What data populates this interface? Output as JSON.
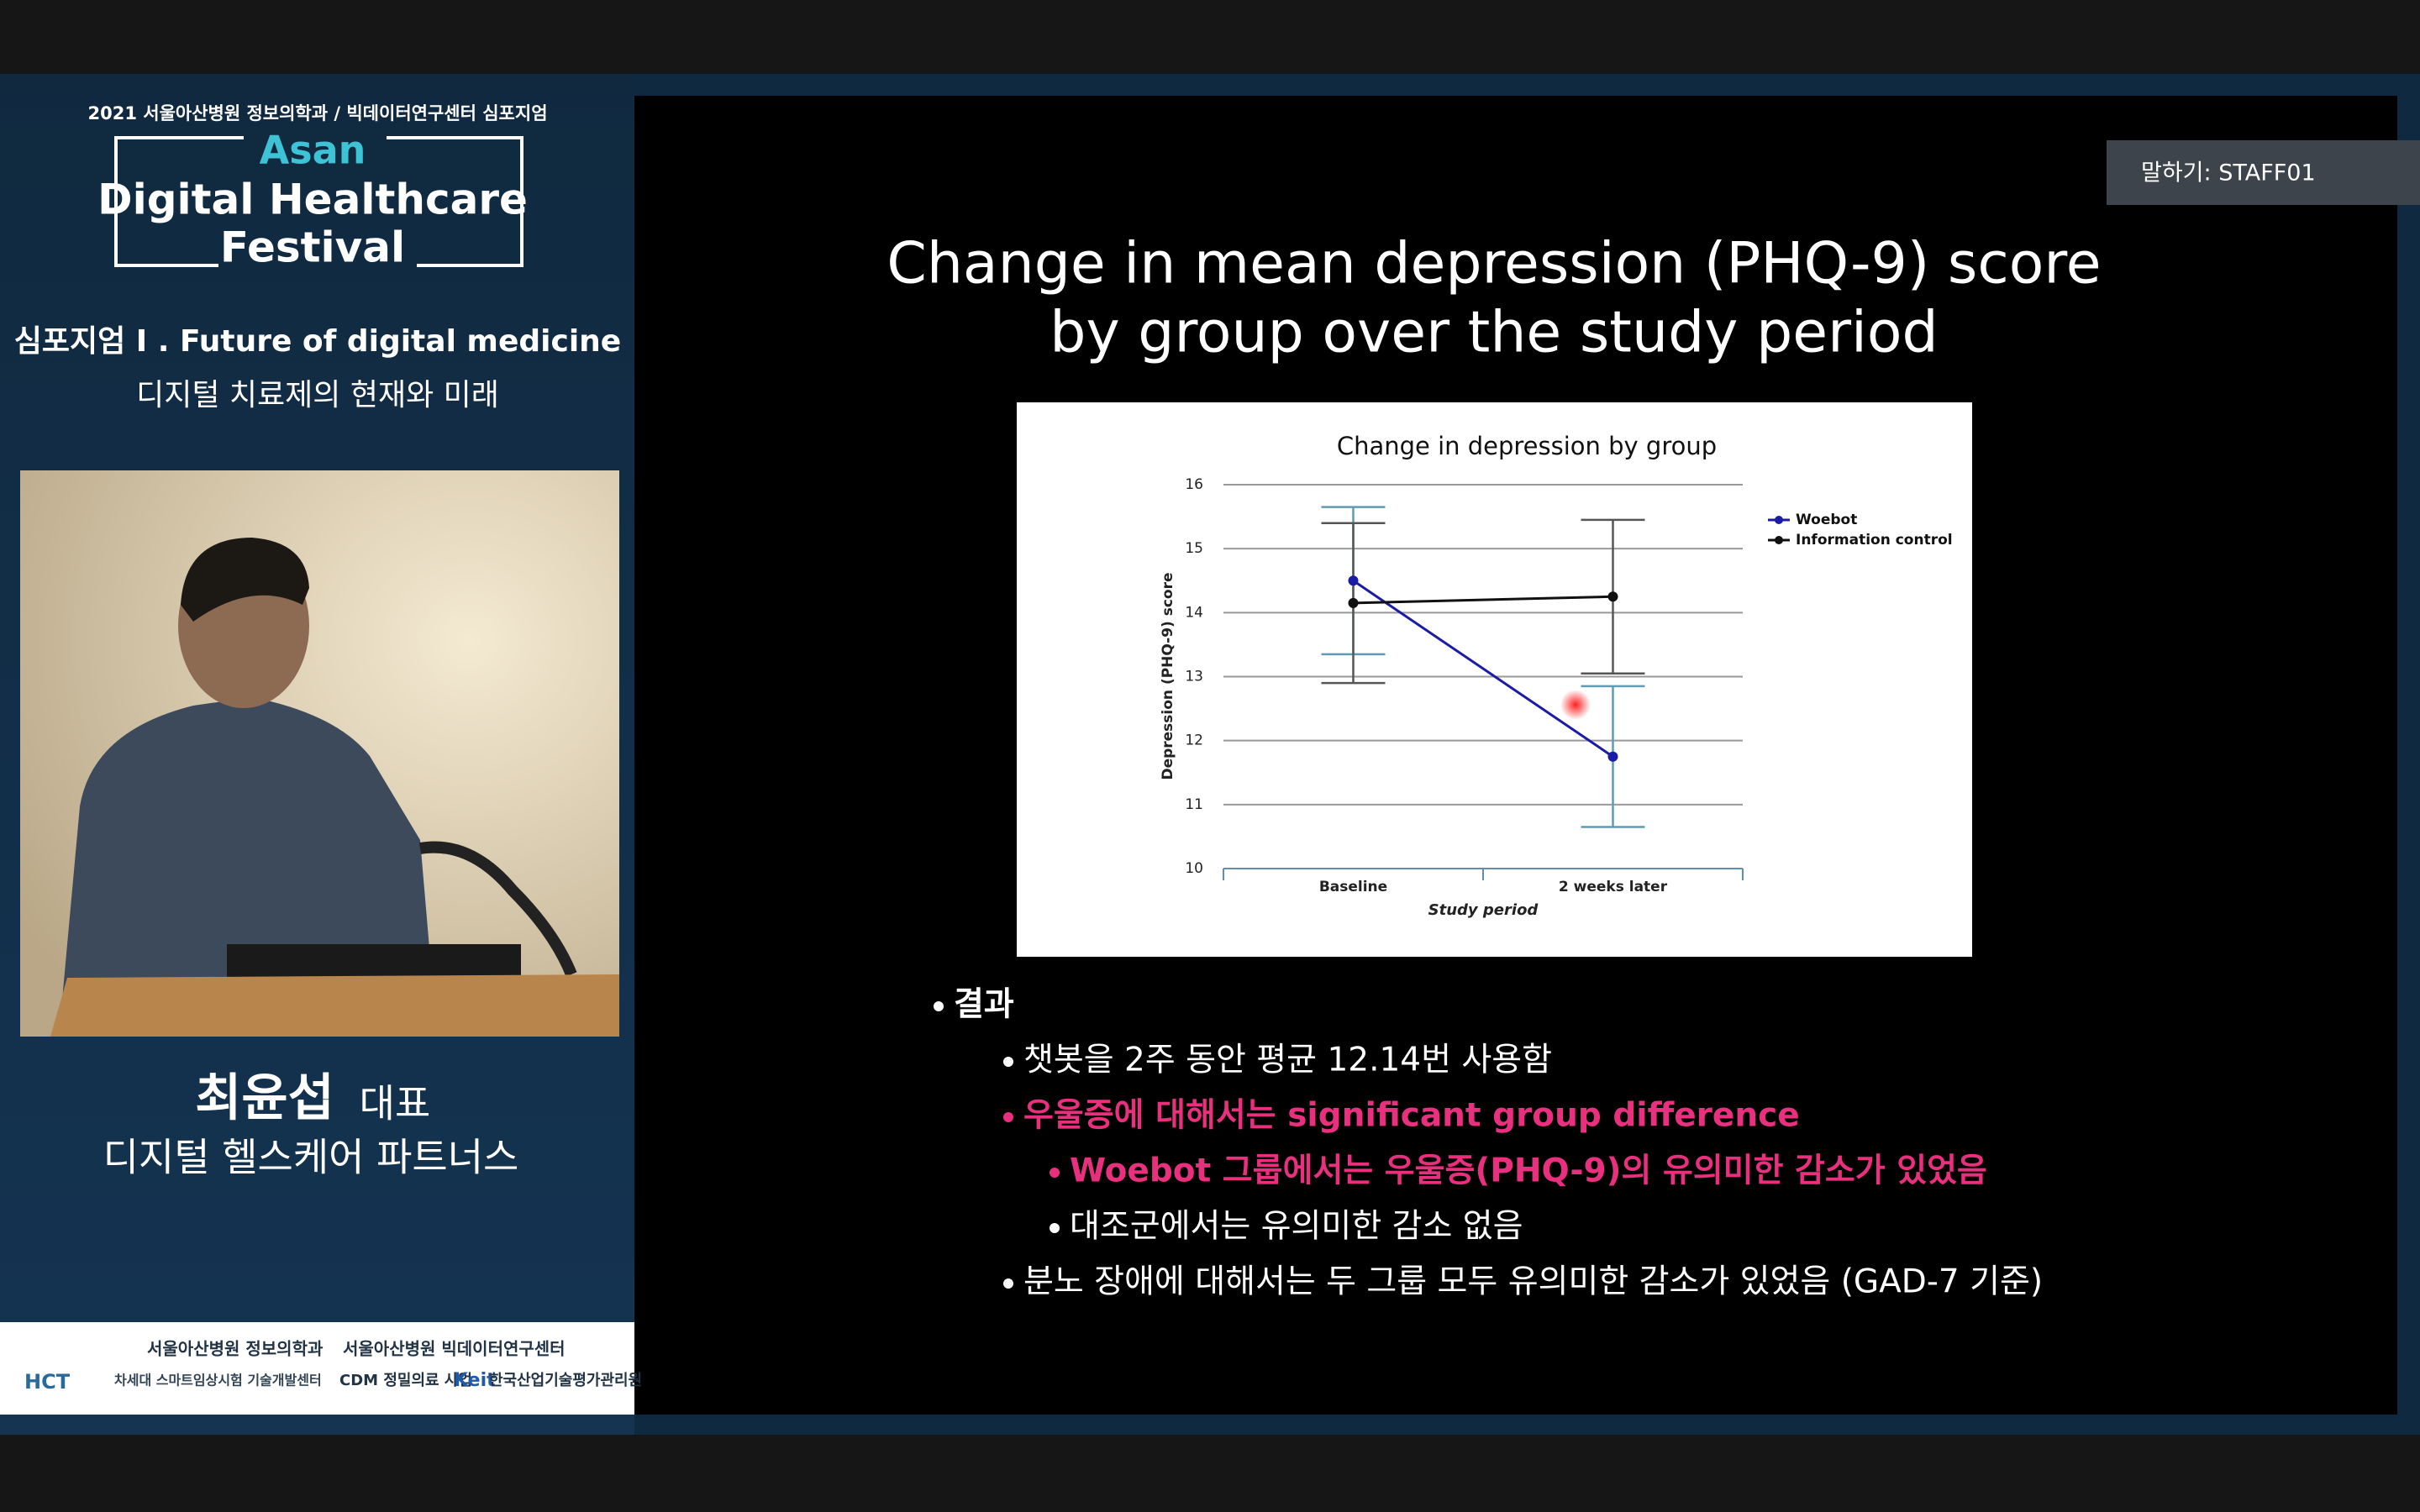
{
  "status_bar": {
    "speaker": "말하기: STAFF01"
  },
  "sidebar": {
    "event_header": "2021 서울아산병원 정보의학과 / 빅데이터연구센터 심포지엄",
    "logo": [
      "Asan",
      "Digital Healthcare",
      "Festival"
    ],
    "session": "심포지엄 I . Future of digital medicine",
    "session_topic": "디지털 치료제의 현재와 미래",
    "speaker_name": "최윤섭",
    "speaker_role": "대표",
    "speaker_affiliation": "디지털 헬스케어 파트너스",
    "sponsors": [
      "서울아산병원 정보의학과",
      "서울아산병원 빅데이터연구센터",
      "차세대 스마트임상시험 기술개발센터",
      "CDM 정밀의료 사업",
      "Keit",
      "한국산업기술평가관리원",
      "HCT"
    ]
  },
  "slide": {
    "title": [
      "Change in mean depression (PHQ-9) score",
      "by group over the study period"
    ],
    "bullets": [
      {
        "text": "결과",
        "level": 0,
        "color": "#ffffff"
      },
      {
        "text": "챗봇을 2주 동안 평균 12.14번 사용함",
        "level": 1,
        "color": "#ffffff"
      },
      {
        "text": "우울증에 대해서는 significant group difference",
        "level": 1,
        "color": "#e8307f"
      },
      {
        "text": "Woebot 그룹에서는 우울증(PHQ-9)의 유의미한 감소가 있었음",
        "level": 2,
        "color": "#e8307f"
      },
      {
        "text": "대조군에서는 유의미한 감소 없음",
        "level": 2,
        "color": "#ffffff"
      },
      {
        "text": "분노 장애에 대해서는 두 그룹 모두 유의미한 감소가 있었음 (GAD-7 기준)",
        "level": 1,
        "color": "#ffffff"
      }
    ]
  },
  "chart_data": {
    "type": "line",
    "title": "Change in depression by group",
    "x_label": "Study period",
    "y_label": "Depression (PHQ-9) score",
    "categories": [
      "Baseline",
      "2 weeks later"
    ],
    "series": [
      {
        "name": "Woebot",
        "color": "#1b1ba6",
        "errorbar_color": "#5f9cb3",
        "values": [
          14.5,
          11.75
        ],
        "errors": [
          1.15,
          1.1
        ]
      },
      {
        "name": "Information control",
        "color": "#111111",
        "errorbar_color": "#555555",
        "values": [
          14.15,
          14.25
        ],
        "errors": [
          1.25,
          1.2
        ]
      }
    ],
    "ylim": [
      10,
      16
    ],
    "yticks": [
      10,
      11,
      12,
      13,
      14,
      15,
      16
    ],
    "grid": true,
    "legend": "right"
  }
}
